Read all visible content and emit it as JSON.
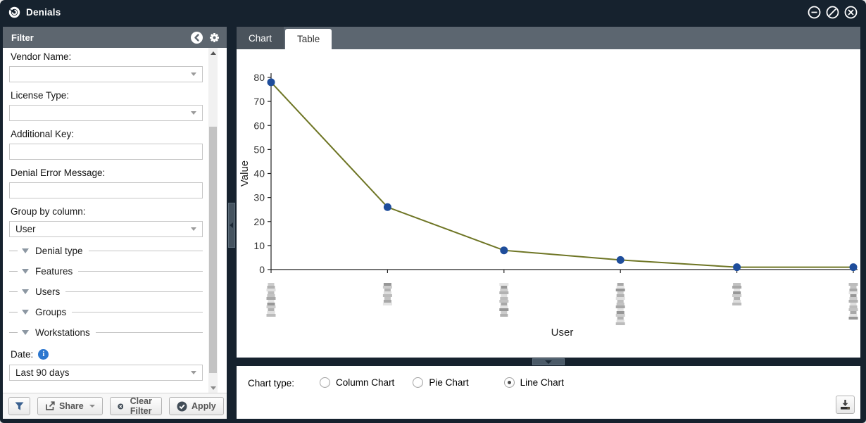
{
  "window": {
    "title": "Denials",
    "controls": [
      {
        "name": "minimize"
      },
      {
        "name": "restore"
      },
      {
        "name": "close"
      }
    ]
  },
  "sidebar": {
    "header": {
      "title": "Filter"
    },
    "fields": [
      {
        "label": "Vendor Name:",
        "type": "select",
        "value": ""
      },
      {
        "label": "License Type:",
        "type": "select",
        "value": ""
      },
      {
        "label": "Additional Key:",
        "type": "text",
        "value": ""
      },
      {
        "label": "Denial Error Message:",
        "type": "text",
        "value": ""
      },
      {
        "label": "Group by column:",
        "type": "select",
        "value": "User"
      }
    ],
    "group_tree": [
      "Denial type",
      "Features",
      "Users",
      "Groups",
      "Workstations"
    ],
    "date": {
      "label": "Date:",
      "value": "Last 90 days"
    },
    "footer": {
      "share_label": "Share",
      "clear_label": "Clear Filter",
      "apply_label": "Apply"
    }
  },
  "main": {
    "tabs": [
      {
        "label": "Chart",
        "active": true
      },
      {
        "label": "Table",
        "active": false
      }
    ],
    "chart_type": {
      "label": "Chart type:",
      "options": [
        "Column Chart",
        "Pie Chart",
        "Line Chart"
      ],
      "selected": "Line Chart"
    }
  },
  "chart_data": {
    "type": "line",
    "categories": [
      "",
      "",
      "",
      "",
      "",
      ""
    ],
    "categories_redacted": true,
    "values": [
      78,
      26,
      8,
      4,
      1,
      1
    ],
    "title": "",
    "xlabel": "User",
    "ylabel": "Value",
    "ylim": [
      0,
      80
    ],
    "yticks": [
      0,
      10,
      20,
      30,
      40,
      50,
      60,
      70,
      80
    ],
    "grid": false,
    "legend": null,
    "line_color": "#6e7524",
    "marker_color": "#1e4d9b",
    "redacted_label_heights": [
      50,
      33,
      48,
      62,
      34,
      52
    ]
  }
}
